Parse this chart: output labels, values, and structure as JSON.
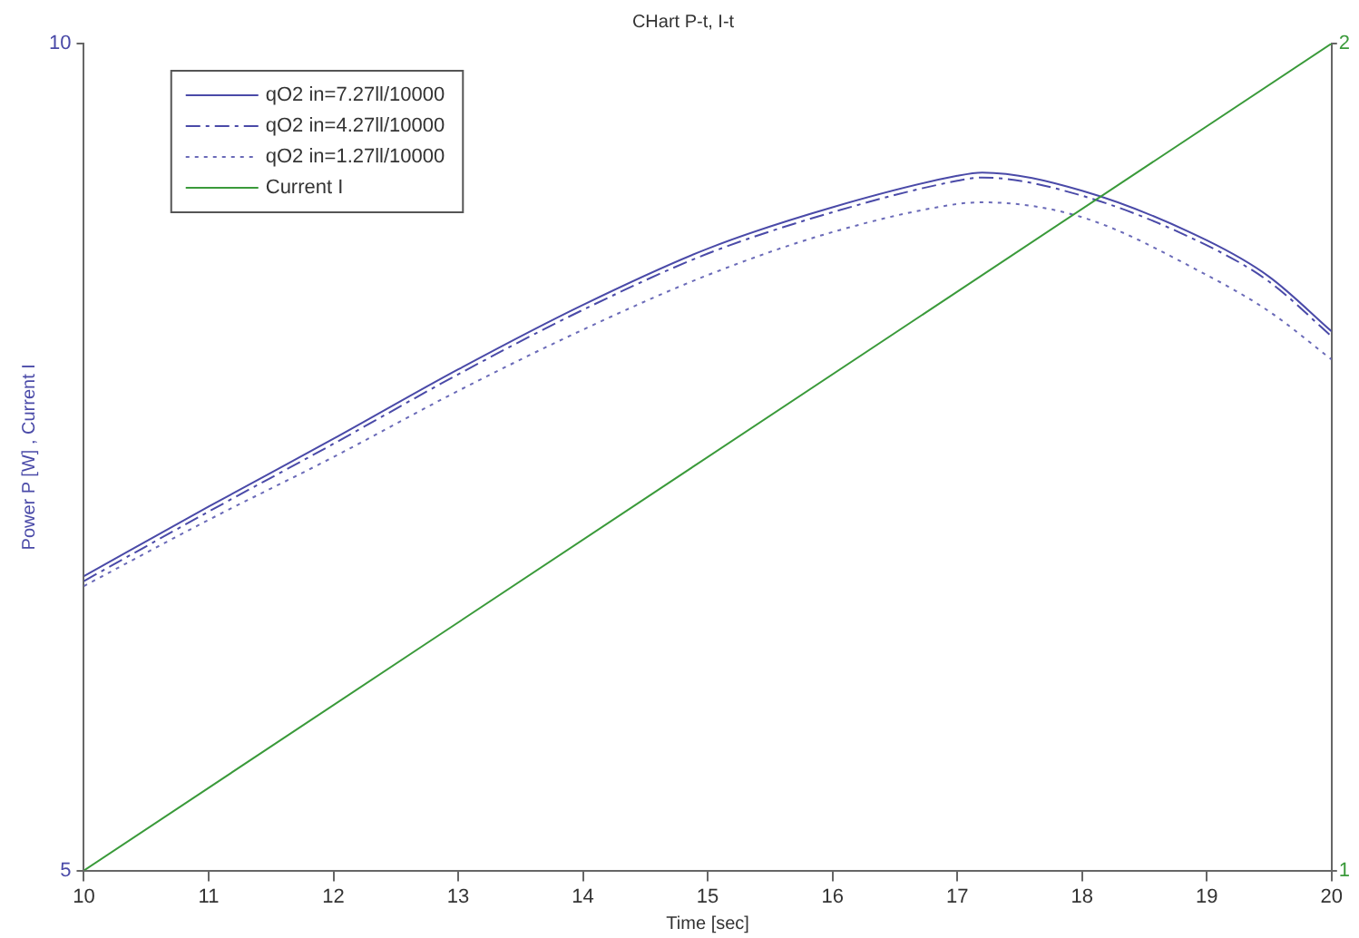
{
  "chart_data": {
    "type": "line",
    "title": "CHart P-t, I-t",
    "xlabel": "Time [sec]",
    "ylabel": "Power P [W] , Current I",
    "xlim": [
      10,
      20
    ],
    "xticks": [
      10,
      11,
      12,
      13,
      14,
      15,
      16,
      17,
      18,
      19,
      20
    ],
    "ylim": [
      5,
      10
    ],
    "yticks": [
      5,
      10
    ],
    "y2lim": [
      1,
      2
    ],
    "y2ticks": [
      1,
      2
    ],
    "x": [
      10,
      11,
      12,
      13,
      14,
      15,
      16,
      17,
      17.2,
      18,
      19,
      19.5,
      20
    ],
    "series": [
      {
        "name": "qO2 in=7.27ll/10000",
        "color": "#4a4aa8",
        "line_style": "solid",
        "values": [
          6.78,
          7.2,
          7.61,
          8.03,
          8.42,
          8.76,
          9.01,
          9.2,
          9.22,
          9.11,
          8.81,
          8.59,
          8.26
        ]
      },
      {
        "name": "qO2 in=4.27ll/10000",
        "color": "#4a4aa8",
        "line_style": "dashed",
        "values": [
          6.75,
          7.17,
          7.58,
          8.0,
          8.39,
          8.73,
          8.98,
          9.17,
          9.19,
          9.08,
          8.78,
          8.56,
          8.23
        ]
      },
      {
        "name": "qO2 in=1.27ll/10000",
        "color": "#6a6ab8",
        "line_style": "dotted",
        "values": [
          6.72,
          7.12,
          7.5,
          7.9,
          8.27,
          8.6,
          8.86,
          9.03,
          9.04,
          8.95,
          8.6,
          8.38,
          8.09
        ]
      },
      {
        "name": "Current I",
        "color": "#3a9a3a",
        "line_style": "solid",
        "axis": "y2",
        "x": [
          10,
          20
        ],
        "values": [
          1,
          2
        ]
      }
    ],
    "legend": "top left",
    "grid": false,
    "marker": "none"
  }
}
